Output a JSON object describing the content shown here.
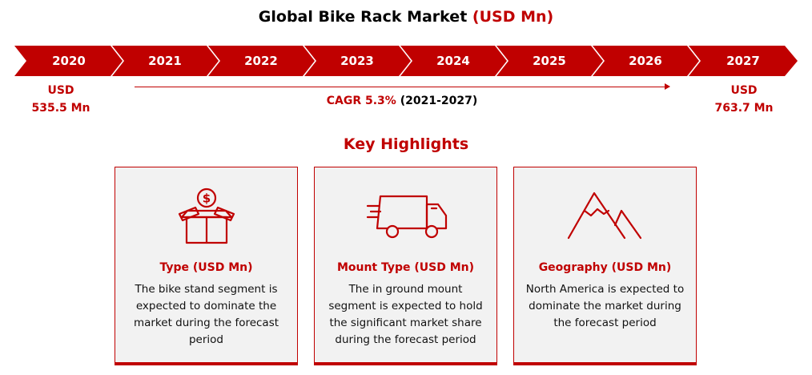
{
  "title": {
    "main": "Global Bike Rack Market",
    "unit": "(USD Mn)"
  },
  "timeline": {
    "years": [
      "2020",
      "2021",
      "2022",
      "2023",
      "2024",
      "2025",
      "2026",
      "2027"
    ]
  },
  "start_value": {
    "currency": "USD",
    "amount": "535.5 Mn"
  },
  "end_value": {
    "currency": "USD",
    "amount": "763.7 Mn"
  },
  "cagr": {
    "label": "CAGR 5.3%",
    "period": "(2021-2027)"
  },
  "key_highlights": {
    "heading": "Key Highlights"
  },
  "cards": [
    {
      "icon": "money-box-icon",
      "title": "Type (USD Mn)",
      "description": "The bike stand segment is expected to dominate the market during the forecast period"
    },
    {
      "icon": "delivery-truck-icon",
      "title": "Mount Type (USD Mn)",
      "description": "The in ground mount segment is expected to hold the significant market share during the forecast period"
    },
    {
      "icon": "mountain-icon",
      "title": "Geography (USD Mn)",
      "description": "North America is expected to dominate the market during the forecast period"
    }
  ],
  "colors": {
    "accent": "#c00000",
    "card_bg": "#f2f2f2",
    "text": "#000000"
  }
}
